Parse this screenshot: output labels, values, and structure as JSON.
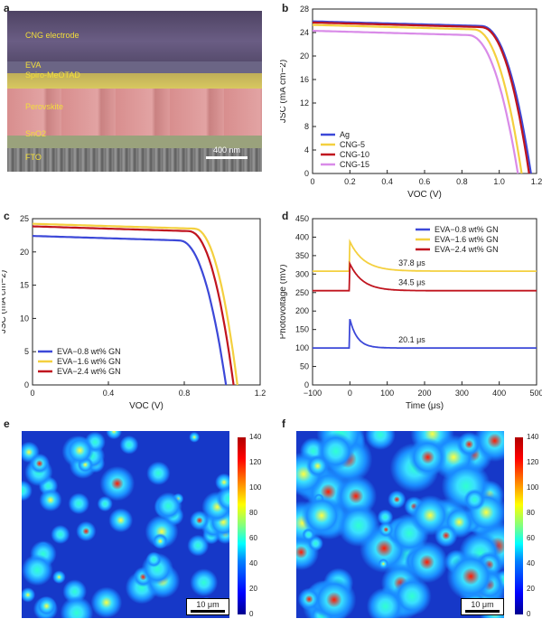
{
  "panel_letters": {
    "a": "a",
    "b": "b",
    "c": "c",
    "d": "d",
    "e": "e",
    "f": "f"
  },
  "sem": {
    "layers": [
      "CNG electrode",
      "EVA",
      "Spiro-MeOTAD",
      "Perovskite",
      "SnO2",
      "FTO"
    ],
    "scale_label": "400 nm"
  },
  "colors": {
    "ag": "#3c48d8",
    "cng5": "#f4d03f",
    "cng10": "#c0141e",
    "cng15": "#d98be8",
    "gn08": "#3c48d8",
    "gn16": "#f4d03f",
    "gn24": "#c0141e"
  },
  "chart_data": [
    {
      "type": "line",
      "panel": "b",
      "xlabel": "VOC (V)",
      "ylabel": "JSC (mA cm−2)",
      "xlim": [
        0,
        1.2
      ],
      "ylim": [
        0,
        28
      ],
      "xticks": [
        "0",
        "0.2",
        "0.4",
        "0.6",
        "0.8",
        "1.0",
        "1.2"
      ],
      "yticks": [
        "0",
        "4",
        "8",
        "12",
        "16",
        "20",
        "24",
        "28"
      ],
      "legend_position": "bottom-left",
      "series": [
        {
          "name": "Ag",
          "jsc": 25.9,
          "voc": 1.17,
          "knee": 0.9,
          "color": "#3c48d8"
        },
        {
          "name": "CNG-5",
          "jsc": 25.3,
          "voc": 1.12,
          "knee": 0.86,
          "color": "#f4d03f"
        },
        {
          "name": "CNG-10",
          "jsc": 25.7,
          "voc": 1.16,
          "knee": 0.9,
          "color": "#c0141e"
        },
        {
          "name": "CNG-15",
          "jsc": 24.3,
          "voc": 1.1,
          "knee": 0.83,
          "color": "#d98be8"
        }
      ]
    },
    {
      "type": "line",
      "panel": "c",
      "xlabel": "VOC (V)",
      "ylabel": "JSC (mA cm−2)",
      "xlim": [
        0,
        1.2
      ],
      "ylim": [
        0,
        26
      ],
      "xticks": [
        "0",
        "0.4",
        "0.8",
        "1.2"
      ],
      "yticks": [
        "0",
        "5",
        "10",
        "15",
        "20",
        "25"
      ],
      "legend_position": "bottom-left",
      "series": [
        {
          "name": "EVA−0.8 wt% GN",
          "jsc": 23.3,
          "voc": 1.02,
          "knee": 0.77,
          "color": "#3c48d8"
        },
        {
          "name": "EVA−1.6 wt% GN",
          "jsc": 25.2,
          "voc": 1.08,
          "knee": 0.85,
          "color": "#f4d03f"
        },
        {
          "name": "EVA−2.4 wt% GN",
          "jsc": 24.8,
          "voc": 1.06,
          "knee": 0.82,
          "color": "#c0141e"
        }
      ]
    },
    {
      "type": "line",
      "panel": "d",
      "xlabel": "Time (μs)",
      "ylabel": "Photovoltage (mV)",
      "xlim": [
        -100,
        500
      ],
      "ylim": [
        0,
        450
      ],
      "xticks": [
        "−100",
        "0",
        "100",
        "200",
        "300",
        "400",
        "500"
      ],
      "yticks": [
        "0",
        "50",
        "100",
        "150",
        "200",
        "250",
        "300",
        "350",
        "400",
        "450"
      ],
      "legend_position": "top-right",
      "series": [
        {
          "name": "EVA−0.8 wt% GN",
          "baseline": 100,
          "peak": 178,
          "tau": 20.1,
          "annotation": "20.1 μs",
          "color": "#3c48d8"
        },
        {
          "name": "EVA−1.6 wt% GN",
          "baseline": 308,
          "peak": 388,
          "tau": 37.8,
          "annotation": "37.8 μs",
          "color": "#f4d03f"
        },
        {
          "name": "EVA−2.4 wt% GN",
          "baseline": 255,
          "peak": 328,
          "tau": 34.5,
          "annotation": "34.5 μs",
          "color": "#c0141e"
        }
      ]
    },
    {
      "type": "heatmap",
      "panel": "e",
      "colorbar_ticks": [
        "0",
        "20",
        "40",
        "60",
        "80",
        "100",
        "120",
        "140"
      ],
      "scale_label": "10 μm"
    },
    {
      "type": "heatmap",
      "panel": "f",
      "colorbar_ticks": [
        "0",
        "20",
        "40",
        "60",
        "80",
        "100",
        "120",
        "140"
      ],
      "scale_label": "10 μm"
    }
  ]
}
